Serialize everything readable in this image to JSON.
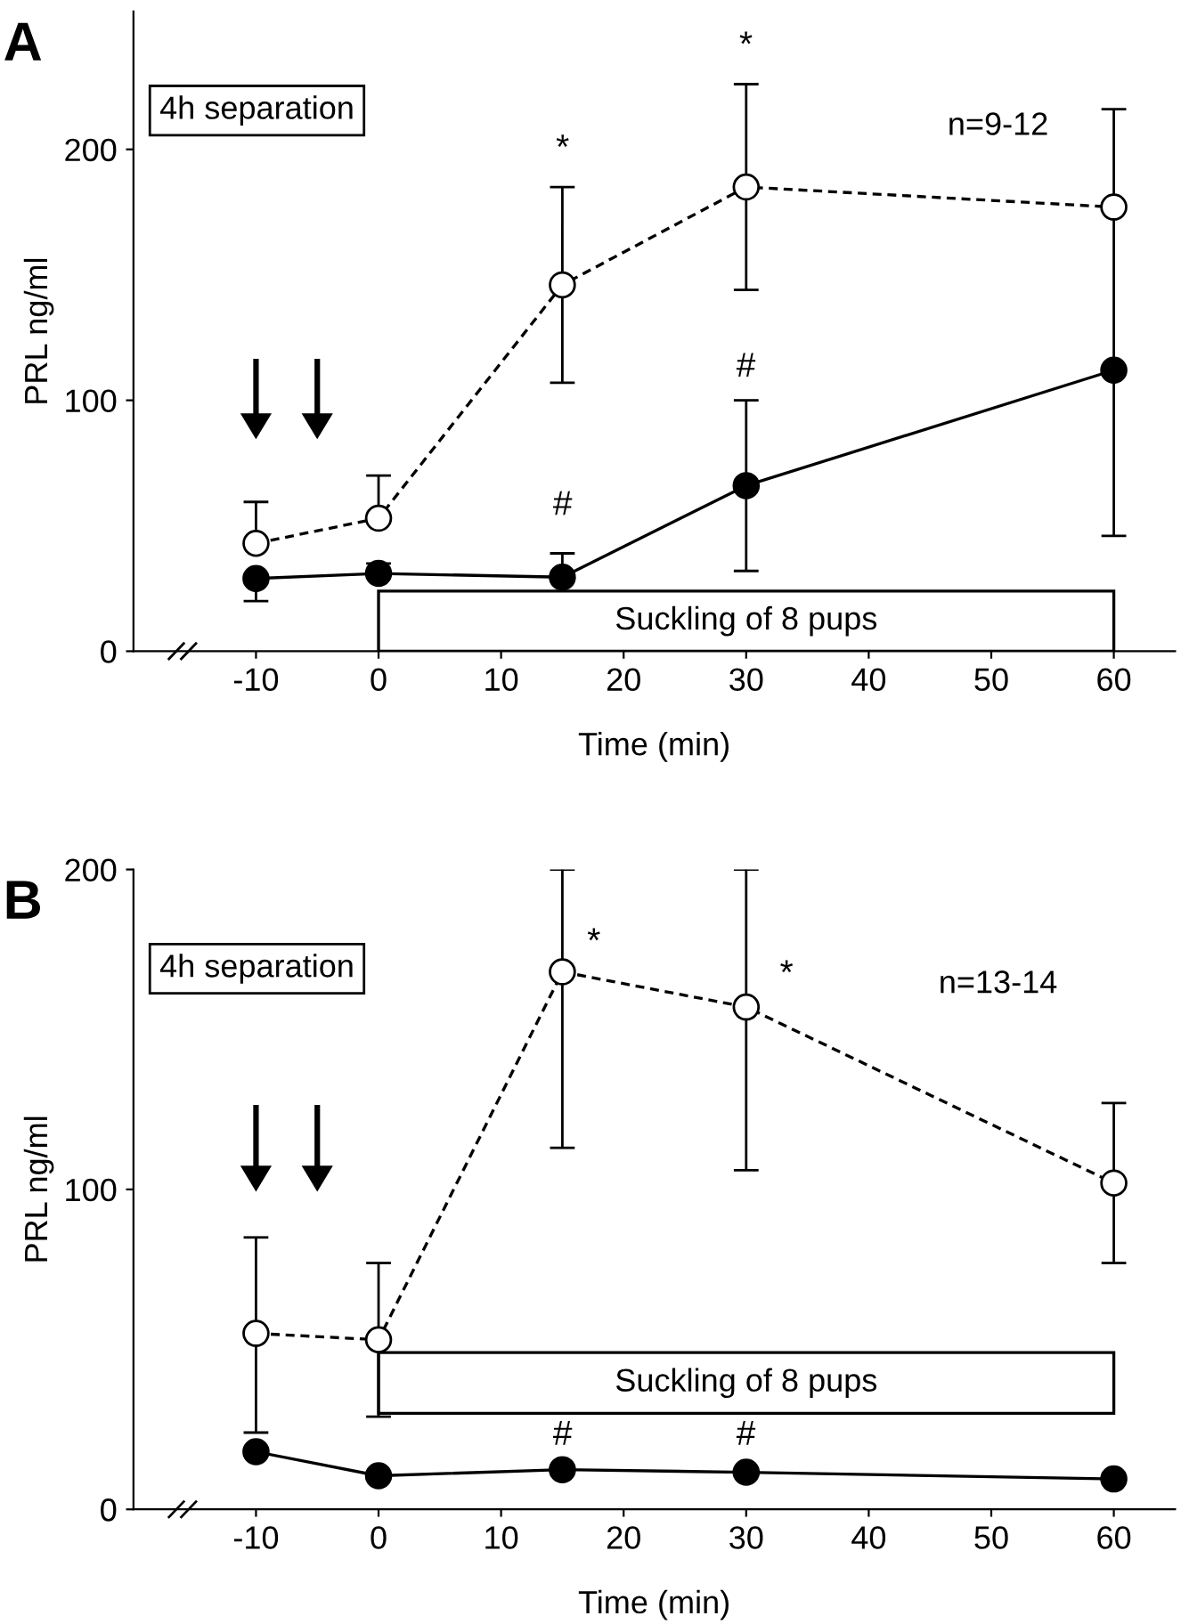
{
  "chart_data": [
    {
      "type": "line",
      "title": "A",
      "xlabel": "Time (min)",
      "ylabel": "PRL ng/ml",
      "x": [
        -10,
        0,
        15,
        30,
        60
      ],
      "xlim": [
        -20,
        65
      ],
      "xticks": [
        -10,
        0,
        10,
        20,
        30,
        40,
        50,
        60
      ],
      "ylim": [
        0,
        255
      ],
      "yticks": [
        0,
        100,
        200
      ],
      "series": [
        {
          "color": "#000000",
          "marker": "circle",
          "line_style": "dashed",
          "values": [
            43,
            53,
            146,
            185,
            177
          ],
          "errors": [
            [
              43,
              59.5
            ],
            [
              53,
              70
            ],
            39,
            41,
            [
              177,
              216
            ]
          ]
        },
        {
          "color": "#000000",
          "marker": "circle",
          "line_style": "solid",
          "values": [
            29,
            31,
            29.5,
            66,
            112
          ],
          "errors": [
            [
              20,
              29
            ],
            [
              31,
              35
            ],
            [
              29.5,
              39
            ],
            34,
            66
          ]
        }
      ],
      "bands": [
        {
          "axis": "x",
          "from": 0,
          "to": 60,
          "label": "Suckling of 8 pups"
        }
      ],
      "annotations": [
        "4h separation",
        "n=9-12",
        "*",
        "*",
        "#",
        "#"
      ],
      "grid": false,
      "legend": false
    },
    {
      "type": "line",
      "title": "B",
      "xlabel": "Time (min)",
      "ylabel": "PRL ng/ml",
      "x": [
        -10,
        0,
        15,
        30,
        60
      ],
      "xlim": [
        -20,
        65
      ],
      "xticks": [
        -10,
        0,
        10,
        20,
        30,
        40,
        50,
        60
      ],
      "ylim": [
        0,
        200
      ],
      "yticks": [
        0,
        100,
        200
      ],
      "series": [
        {
          "color": "#000000",
          "marker": "circle",
          "line_style": "dashed",
          "values": [
            55,
            53,
            168,
            157,
            102
          ],
          "errors": [
            [
              24,
              85
            ],
            [
              29,
              77
            ],
            [
              113,
              200
            ],
            [
              106,
              200
            ],
            25
          ]
        },
        {
          "color": "#000000",
          "marker": "circle",
          "line_style": "solid",
          "values": [
            18,
            10.5,
            12.4,
            11.6,
            9.5
          ]
        }
      ],
      "bands": [
        {
          "axis": "x",
          "from": 0,
          "to": 60,
          "label": "Suckling of 8 pups"
        }
      ],
      "annotations": [
        "4h separation",
        "n=13-14",
        "*",
        "*",
        "#",
        "#"
      ],
      "grid": false,
      "legend": false
    }
  ]
}
